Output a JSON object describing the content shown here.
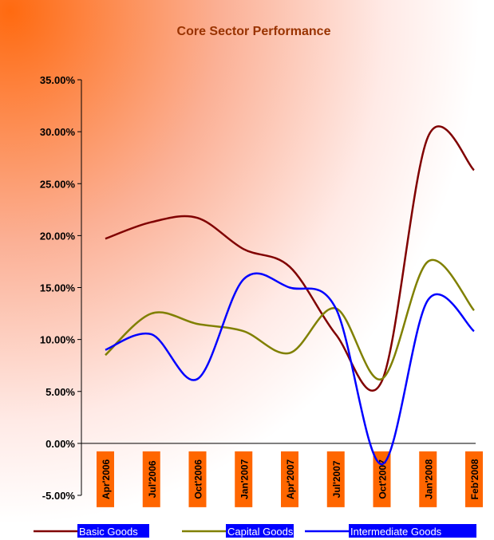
{
  "chart_data": {
    "type": "line",
    "title": "Core Sector Performance",
    "categories": [
      "Apr'2006",
      "Jul'2006",
      "Oct'2006",
      "Jan'2007",
      "Apr'2007",
      "Jul'2007",
      "Oct'2007",
      "Jan'2008",
      "Feb'2008"
    ],
    "series": [
      {
        "name": "Basic Goods",
        "color": "#800000",
        "values": [
          19.7,
          21.3,
          21.7,
          18.7,
          17.0,
          10.5,
          6.0,
          29.5,
          26.3
        ]
      },
      {
        "name": "Capital Goods",
        "color": "#808000",
        "values": [
          8.5,
          12.5,
          11.5,
          10.8,
          8.7,
          13.0,
          6.2,
          17.5,
          12.8
        ]
      },
      {
        "name": "Intermediate Goods",
        "color": "#0000ff",
        "values": [
          9.0,
          10.5,
          6.2,
          15.8,
          15.0,
          13.0,
          -2.0,
          13.8,
          10.8
        ]
      }
    ],
    "ylim": [
      -5,
      35
    ],
    "yticks": [
      {
        "value": -5,
        "label": "-5.00%"
      },
      {
        "value": 0,
        "label": "0.00%"
      },
      {
        "value": 5,
        "label": "5.00%"
      },
      {
        "value": 10,
        "label": "10.00%"
      },
      {
        "value": 15,
        "label": "15.00%"
      },
      {
        "value": 20,
        "label": "20.00%"
      },
      {
        "value": 25,
        "label": "25.00%"
      },
      {
        "value": 30,
        "label": "30.00%"
      },
      {
        "value": 35,
        "label": "35.00%"
      }
    ],
    "grid": false,
    "legend": "bottom"
  }
}
